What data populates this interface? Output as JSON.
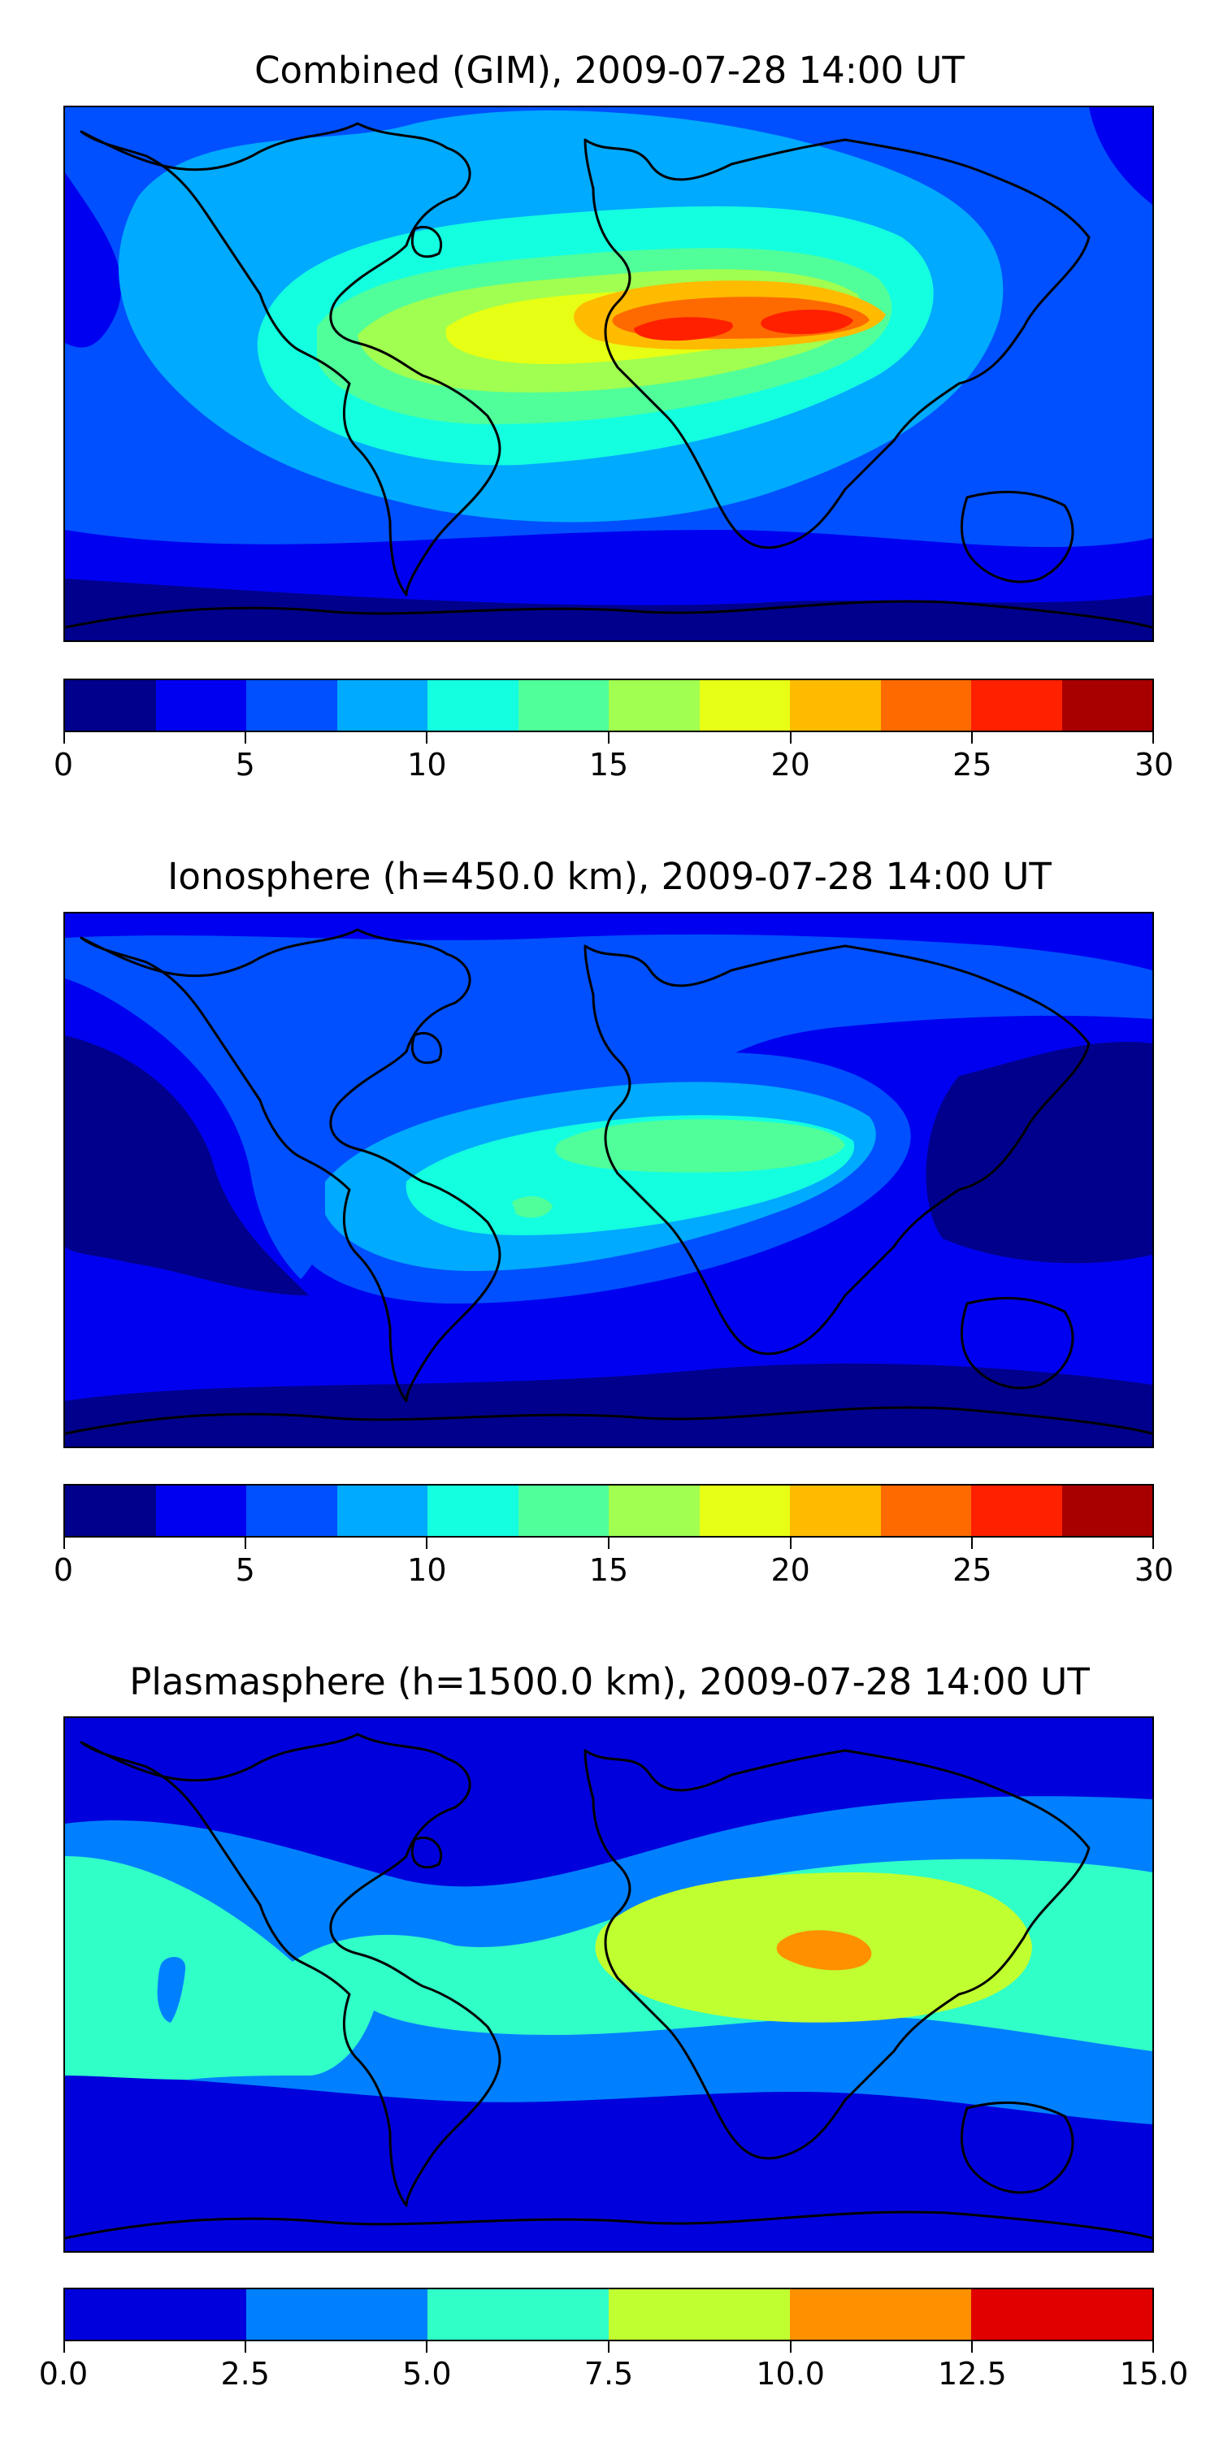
{
  "chart_data": [
    {
      "type": "heatmap",
      "title": "Combined (GIM), 2009-07-28 14:00 UT",
      "colorbar": {
        "levels": [
          0,
          2.5,
          5,
          7.5,
          10,
          12.5,
          15,
          17.5,
          20,
          22.5,
          25,
          27.5,
          30
        ],
        "colors": [
          "#00008c",
          "#0000f0",
          "#0050ff",
          "#00aaff",
          "#14ffe0",
          "#50ff9a",
          "#a0ff50",
          "#e6ff14",
          "#ffbb00",
          "#ff6a00",
          "#ff2000",
          "#a80000"
        ],
        "tick_labels": [
          "0",
          "5",
          "10",
          "15",
          "20",
          "25",
          "30"
        ],
        "tick_values": [
          0,
          5,
          10,
          15,
          20,
          25,
          30
        ],
        "range": [
          0,
          30
        ]
      },
      "field": {
        "background_value": 5,
        "peak_region": "Arabia / North Africa",
        "max_value": 25
      }
    },
    {
      "type": "heatmap",
      "title": "Ionosphere  (h=450.0 km), 2009-07-28 14:00 UT",
      "colorbar": {
        "levels": [
          0,
          2.5,
          5,
          7.5,
          10,
          12.5,
          15,
          17.5,
          20,
          22.5,
          25,
          27.5,
          30
        ],
        "colors": [
          "#00008c",
          "#0000f0",
          "#0050ff",
          "#00aaff",
          "#14ffe0",
          "#50ff9a",
          "#a0ff50",
          "#e6ff14",
          "#ffbb00",
          "#ff6a00",
          "#ff2000",
          "#a80000"
        ],
        "tick_labels": [
          "0",
          "5",
          "10",
          "15",
          "20",
          "25",
          "30"
        ],
        "tick_values": [
          0,
          5,
          10,
          15,
          20,
          25,
          30
        ],
        "range": [
          0,
          30
        ]
      },
      "field": {
        "background_value": 2.5,
        "peak_region": "North Africa",
        "max_value": 15
      }
    },
    {
      "type": "heatmap",
      "title": "Plasmasphere (h=1500.0 km), 2009-07-28 14:00 UT",
      "colorbar": {
        "levels": [
          0,
          2.5,
          5,
          7.5,
          10,
          12.5,
          15
        ],
        "colors": [
          "#0000dc",
          "#0080ff",
          "#30ffc8",
          "#c0ff30",
          "#ff9000",
          "#e00000"
        ],
        "tick_labels": [
          "0.0",
          "2.5",
          "5.0",
          "7.5",
          "10.0",
          "12.5",
          "15.0"
        ],
        "tick_values": [
          0,
          2.5,
          5,
          7.5,
          10,
          12.5,
          15
        ],
        "range": [
          0,
          15
        ]
      },
      "field": {
        "background_value": 0,
        "peak_region": "Arabian Sea",
        "max_value": 12.5
      }
    }
  ]
}
